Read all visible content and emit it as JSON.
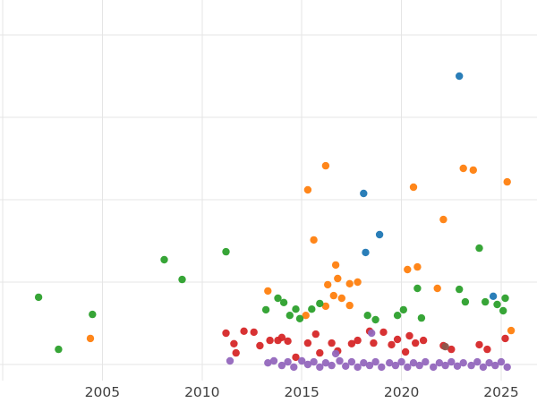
{
  "chart_data": {
    "type": "scatter",
    "title": "",
    "xlabel": "",
    "ylabel": "",
    "grid": true,
    "legend": "none",
    "x_range": [
      2000,
      2026.8
    ],
    "y_range": [
      -5,
      110
    ],
    "x_gridlines": [
      2000,
      2005,
      2010,
      2015,
      2020,
      2025
    ],
    "y_gridlines": [
      0,
      25,
      50,
      75,
      100
    ],
    "x_ticks": [
      2005,
      2010,
      2015,
      2020,
      2025
    ],
    "x_tick_labels": [
      "2005",
      "2010",
      "2015",
      "2020",
      "2025"
    ],
    "series": [
      {
        "name": "blue",
        "color": "#1f77b4",
        "points": [
          [
            2022.9,
            87.5
          ],
          [
            2018.1,
            51.9
          ],
          [
            2018.9,
            39.4
          ],
          [
            2018.2,
            34.0
          ],
          [
            2024.6,
            20.7
          ]
        ]
      },
      {
        "name": "orange",
        "color": "#ff7f0e",
        "points": [
          [
            2004.4,
            7.9
          ],
          [
            2013.3,
            22.3
          ],
          [
            2015.2,
            14.9
          ],
          [
            2015.3,
            53.0
          ],
          [
            2015.6,
            37.8
          ],
          [
            2016.2,
            60.3
          ],
          [
            2016.2,
            17.7
          ],
          [
            2016.3,
            24.2
          ],
          [
            2016.6,
            20.9
          ],
          [
            2016.7,
            30.2
          ],
          [
            2016.8,
            26.1
          ],
          [
            2017.0,
            20.1
          ],
          [
            2017.4,
            24.5
          ],
          [
            2017.4,
            17.9
          ],
          [
            2017.8,
            25.0
          ],
          [
            2020.3,
            28.8
          ],
          [
            2020.6,
            53.8
          ],
          [
            2020.8,
            29.6
          ],
          [
            2021.8,
            23.1
          ],
          [
            2022.1,
            44.0
          ],
          [
            2023.1,
            59.5
          ],
          [
            2023.6,
            59.0
          ],
          [
            2025.3,
            55.4
          ],
          [
            2025.5,
            10.3
          ]
        ]
      },
      {
        "name": "green",
        "color": "#2ca02c",
        "points": [
          [
            2001.8,
            20.4
          ],
          [
            2002.8,
            4.6
          ],
          [
            2004.5,
            15.2
          ],
          [
            2008.1,
            31.8
          ],
          [
            2009.0,
            25.8
          ],
          [
            2011.2,
            34.2
          ],
          [
            2013.2,
            16.6
          ],
          [
            2013.8,
            20.1
          ],
          [
            2014.1,
            18.8
          ],
          [
            2014.4,
            14.9
          ],
          [
            2014.7,
            16.8
          ],
          [
            2014.9,
            13.9
          ],
          [
            2015.5,
            16.8
          ],
          [
            2015.9,
            18.5
          ],
          [
            2018.3,
            14.9
          ],
          [
            2018.7,
            13.6
          ],
          [
            2019.8,
            14.9
          ],
          [
            2020.1,
            16.6
          ],
          [
            2020.8,
            23.1
          ],
          [
            2021.0,
            14.1
          ],
          [
            2022.9,
            22.8
          ],
          [
            2023.2,
            19.0
          ],
          [
            2023.9,
            35.3
          ],
          [
            2024.2,
            19.0
          ],
          [
            2024.8,
            18.2
          ],
          [
            2025.1,
            16.3
          ],
          [
            2025.2,
            20.1
          ]
        ]
      },
      {
        "name": "red",
        "color": "#d62728",
        "points": [
          [
            2011.2,
            9.5
          ],
          [
            2011.6,
            6.3
          ],
          [
            2011.7,
            3.5
          ],
          [
            2012.1,
            10.1
          ],
          [
            2012.6,
            9.8
          ],
          [
            2012.9,
            5.7
          ],
          [
            2013.4,
            7.3
          ],
          [
            2013.8,
            7.3
          ],
          [
            2014.0,
            8.2
          ],
          [
            2014.3,
            7.1
          ],
          [
            2014.7,
            2.2
          ],
          [
            2015.3,
            6.5
          ],
          [
            2015.7,
            9.2
          ],
          [
            2015.9,
            3.5
          ],
          [
            2016.5,
            6.5
          ],
          [
            2016.8,
            4.1
          ],
          [
            2017.5,
            6.3
          ],
          [
            2017.8,
            7.3
          ],
          [
            2018.4,
            10.1
          ],
          [
            2018.6,
            6.5
          ],
          [
            2019.1,
            9.8
          ],
          [
            2019.5,
            6.0
          ],
          [
            2019.8,
            7.6
          ],
          [
            2020.2,
            3.8
          ],
          [
            2020.4,
            8.7
          ],
          [
            2020.7,
            6.5
          ],
          [
            2021.1,
            7.3
          ],
          [
            2022.1,
            5.7
          ],
          [
            2022.5,
            4.6
          ],
          [
            2023.9,
            6.0
          ],
          [
            2024.3,
            4.6
          ],
          [
            2025.2,
            7.9
          ]
        ]
      },
      {
        "name": "brown",
        "color": "#8c564b",
        "points": [
          [
            2022.2,
            5.4
          ]
        ]
      },
      {
        "name": "purple",
        "color": "#9467bd",
        "points": [
          [
            2011.4,
            1.1
          ],
          [
            2013.3,
            0.5
          ],
          [
            2013.6,
            1.1
          ],
          [
            2014.0,
            -0.3
          ],
          [
            2014.3,
            0.8
          ],
          [
            2014.6,
            -0.8
          ],
          [
            2015.0,
            1.1
          ],
          [
            2015.3,
            0.0
          ],
          [
            2015.6,
            0.8
          ],
          [
            2015.9,
            -0.8
          ],
          [
            2016.2,
            0.5
          ],
          [
            2016.5,
            -0.3
          ],
          [
            2016.7,
            3.3
          ],
          [
            2016.9,
            1.1
          ],
          [
            2017.2,
            -0.5
          ],
          [
            2017.5,
            0.8
          ],
          [
            2017.8,
            -0.8
          ],
          [
            2018.1,
            0.5
          ],
          [
            2018.4,
            -0.3
          ],
          [
            2018.5,
            9.5
          ],
          [
            2018.7,
            0.8
          ],
          [
            2019.0,
            -0.8
          ],
          [
            2019.4,
            0.5
          ],
          [
            2019.7,
            -0.3
          ],
          [
            2020.0,
            0.8
          ],
          [
            2020.3,
            -0.8
          ],
          [
            2020.6,
            0.5
          ],
          [
            2020.9,
            -0.3
          ],
          [
            2021.2,
            0.8
          ],
          [
            2021.6,
            -0.8
          ],
          [
            2021.9,
            0.5
          ],
          [
            2022.2,
            -0.3
          ],
          [
            2022.5,
            0.8
          ],
          [
            2022.8,
            -0.5
          ],
          [
            2023.1,
            0.5
          ],
          [
            2023.5,
            -0.3
          ],
          [
            2023.8,
            0.8
          ],
          [
            2024.1,
            -0.8
          ],
          [
            2024.4,
            0.5
          ],
          [
            2024.7,
            -0.3
          ],
          [
            2025.0,
            0.8
          ],
          [
            2025.3,
            -0.8
          ]
        ]
      }
    ]
  }
}
